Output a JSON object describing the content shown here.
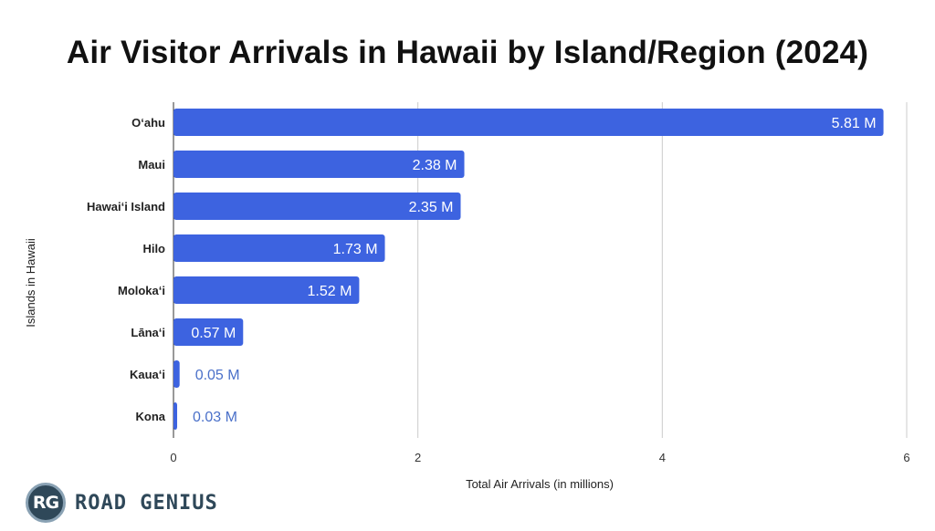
{
  "chart_data": {
    "type": "bar",
    "orientation": "horizontal",
    "title": "Air Visitor Arrivals in Hawaii by Island/Region (2024)",
    "xlabel": "Total Air Arrivals (in millions)",
    "ylabel": "Islands in Hawaii",
    "xlim": [
      0,
      6
    ],
    "xticks": [
      "0",
      "2",
      "4",
      "6"
    ],
    "grid": true,
    "categories": [
      "O‘ahu",
      "Maui",
      "Hawai‘i Island",
      "Hilo",
      "Moloka‘i",
      "Lāna‘i",
      "Kaua‘i",
      "Kona"
    ],
    "values": [
      5.81,
      2.38,
      2.35,
      1.73,
      1.52,
      0.57,
      0.05,
      0.03
    ],
    "data_labels": [
      "5.81 M",
      "2.38 M",
      "2.35 M",
      "1.73 M",
      "1.52 M",
      "0.57 M",
      "0.05 M",
      "0.03 M"
    ],
    "bar_color": "#3d63e0",
    "label_inside_color": "#ffffff",
    "label_outside_color": "#4a70c9"
  },
  "brand": {
    "logo_text": "RG",
    "name": "ROAD GENIUS",
    "logo_icon": "road-genius-logo-icon"
  }
}
